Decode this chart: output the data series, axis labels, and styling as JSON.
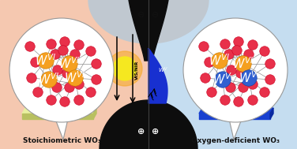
{
  "bg_left_color": "#f5c8b0",
  "bg_right_color": "#c5ddf0",
  "left_label": "Stoichiometric WO₃",
  "right_label": "Oxygen-deficient WO₃",
  "o_color": "#e8304a",
  "o_edge": "#cc0020",
  "w6_color": "#f5a020",
  "w6_edge": "#c87800",
  "w5_color": "#3060d0",
  "w5_edge": "#1040a0",
  "sun_inner": "#f5e820",
  "sun_outer": "#f5a820",
  "plate_left_top": "#e8f0a0",
  "plate_left_side": "#b8c060",
  "plate_right_top": "#1840d0",
  "plate_right_side": "#0828a0",
  "funnel_color": "#0d0d0d",
  "center_blue_color": "#1830d0",
  "gray_top": "#c0c8d0",
  "bond_color": "#909090"
}
